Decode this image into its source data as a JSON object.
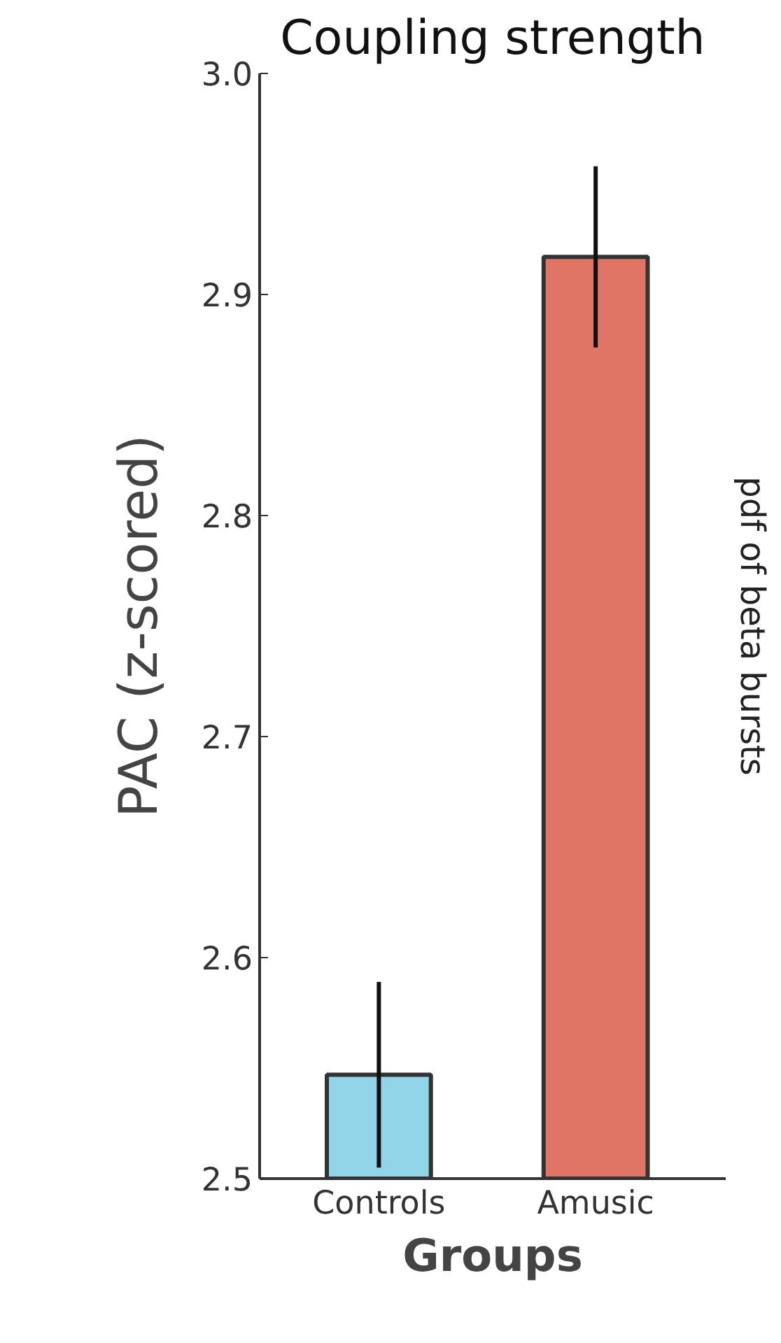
{
  "chart_data": {
    "type": "bar",
    "title": "Coupling strength",
    "xlabel": "Groups",
    "ylabel": "PAC (z-scored)",
    "categories": [
      "Controls",
      "Amusic"
    ],
    "values": [
      2.547,
      2.917
    ],
    "colors": [
      "#93d5e8",
      "#e07565"
    ],
    "errors": [
      0.042,
      0.041
    ],
    "ylim": [
      2.5,
      3.0
    ],
    "yticks": [
      2.5,
      2.6,
      2.7,
      2.8,
      2.9,
      {
        "value": 3.0,
        "label": "3.0"
      }
    ],
    "grid": false,
    "annotations": [
      "pdf of beta bursts"
    ]
  }
}
